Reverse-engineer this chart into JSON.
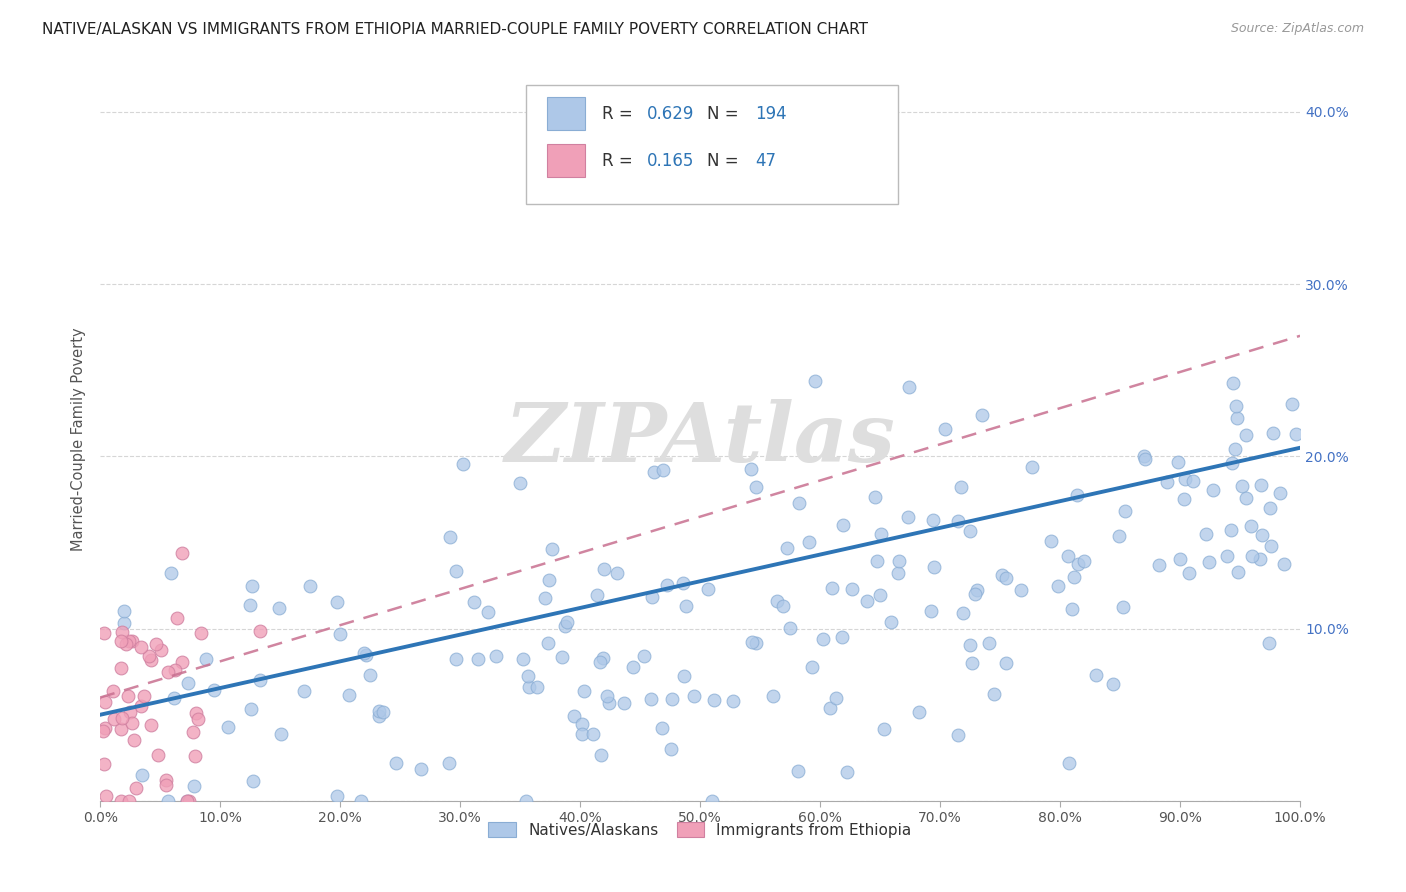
{
  "title": "NATIVE/ALASKAN VS IMMIGRANTS FROM ETHIOPIA MARRIED-COUPLE FAMILY POVERTY CORRELATION CHART",
  "source": "Source: ZipAtlas.com",
  "watermark": "ZIPAtlas",
  "ylabel": "Married-Couple Family Poverty",
  "xlim": [
    0.0,
    1.0
  ],
  "ylim": [
    0.0,
    0.42
  ],
  "xticks": [
    0.0,
    0.1,
    0.2,
    0.3,
    0.4,
    0.5,
    0.6,
    0.7,
    0.8,
    0.9,
    1.0
  ],
  "xticklabels": [
    "0.0%",
    "10.0%",
    "20.0%",
    "30.0%",
    "40.0%",
    "50.0%",
    "60.0%",
    "70.0%",
    "80.0%",
    "90.0%",
    "100.0%"
  ],
  "yticks": [
    0.0,
    0.1,
    0.2,
    0.3,
    0.4
  ],
  "yticklabels": [
    "",
    "10.0%",
    "20.0%",
    "30.0%",
    "40.0%"
  ],
  "blue_color": "#AEC8E8",
  "pink_color": "#F0A0B8",
  "blue_line_color": "#2E75B6",
  "pink_line_color": "#C87090",
  "legend_R1": "0.629",
  "legend_N1": "194",
  "legend_R2": "0.165",
  "legend_N2": "47",
  "legend_label1": "Natives/Alaskans",
  "legend_label2": "Immigrants from Ethiopia",
  "blue_R": 0.629,
  "pink_R": 0.165,
  "blue_N": 194,
  "pink_N": 47,
  "background_color": "#ffffff",
  "grid_color": "#cccccc",
  "title_color": "#333333",
  "source_color": "#999999",
  "watermark_color": "#dedede",
  "seed_blue": 42,
  "seed_pink": 7,
  "blue_trend_start": 0.05,
  "blue_trend_end": 0.205,
  "pink_trend_start": 0.06,
  "pink_trend_end": 0.27
}
